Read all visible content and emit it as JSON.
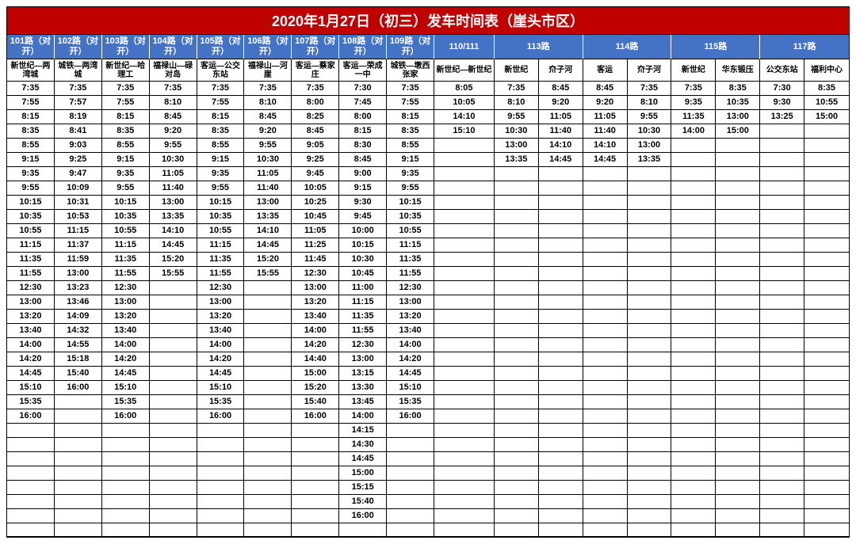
{
  "title": "2020年1月27日（初三）发车时间表（崖头市区）",
  "colors": {
    "title_bg": "#c00000",
    "header_bg": "#4472c4",
    "text_white": "#ffffff",
    "border": "#000000"
  },
  "layout": {
    "col_widths_single": [
      60,
      60,
      60,
      60,
      60,
      60,
      60,
      60,
      60,
      76
    ],
    "col_widths_pair": [
      56,
      56,
      56,
      56,
      56,
      56,
      56,
      56
    ]
  },
  "route_headers": [
    {
      "label": "101路（对开）",
      "span": 1
    },
    {
      "label": "102路（对开）",
      "span": 1
    },
    {
      "label": "103路（对开）",
      "span": 1
    },
    {
      "label": "104路（对开）",
      "span": 1
    },
    {
      "label": "105路（对开）",
      "span": 1
    },
    {
      "label": "106路（对开）",
      "span": 1
    },
    {
      "label": "107路（对开）",
      "span": 1
    },
    {
      "label": "108路（对开）",
      "span": 1
    },
    {
      "label": "109路（对开）",
      "span": 1
    },
    {
      "label": "110/111",
      "span": 1
    },
    {
      "label": "113路",
      "span": 2
    },
    {
      "label": "114路",
      "span": 2
    },
    {
      "label": "115路",
      "span": 2
    },
    {
      "label": "117路",
      "span": 2
    }
  ],
  "sub_headers": [
    "新世纪—两湾城",
    "城铁—两湾城",
    "新世纪—哈理工",
    "福禄山—碌对岛",
    "客运—公交东站",
    "福禄山—河崖",
    "客运—蔡家庄",
    "客运—荣成一中",
    "城铁—墩西张家",
    "新世纪—新世纪",
    "新世纪",
    "夼子河",
    "客运",
    "夼子河",
    "新世纪",
    "华东锻压",
    "公交东站",
    "福利中心"
  ],
  "rows": [
    [
      "7:35",
      "7:35",
      "7:35",
      "7:35",
      "7:35",
      "7:35",
      "7:35",
      "7:30",
      "7:35",
      "8:05",
      "7:35",
      "8:45",
      "8:45",
      "7:35",
      "7:35",
      "8:35",
      "7:30",
      "8:35"
    ],
    [
      "7:55",
      "7:57",
      "7:55",
      "8:10",
      "7:55",
      "8:10",
      "8:00",
      "7:45",
      "7:55",
      "10:05",
      "8:10",
      "9:20",
      "9:20",
      "8:10",
      "9:35",
      "10:35",
      "9:30",
      "10:55"
    ],
    [
      "8:15",
      "8:19",
      "8:15",
      "8:45",
      "8:15",
      "8:45",
      "8:25",
      "8:00",
      "8:15",
      "14:10",
      "9:55",
      "11:05",
      "11:05",
      "9:55",
      "11:35",
      "13:00",
      "13:25",
      "15:00"
    ],
    [
      "8:35",
      "8:41",
      "8:35",
      "9:20",
      "8:35",
      "9:20",
      "8:45",
      "8:15",
      "8:35",
      "15:10",
      "10:30",
      "11:40",
      "11:40",
      "10:30",
      "14:00",
      "15:00",
      "",
      ""
    ],
    [
      "8:55",
      "9:03",
      "8:55",
      "9:55",
      "8:55",
      "9:55",
      "9:05",
      "8:30",
      "8:55",
      "",
      "13:00",
      "14:10",
      "14:10",
      "13:00",
      "",
      "",
      "",
      ""
    ],
    [
      "9:15",
      "9:25",
      "9:15",
      "10:30",
      "9:15",
      "10:30",
      "9:25",
      "8:45",
      "9:15",
      "",
      "13:35",
      "14:45",
      "14:45",
      "13:35",
      "",
      "",
      "",
      ""
    ],
    [
      "9:35",
      "9:47",
      "9:35",
      "11:05",
      "9:35",
      "11:05",
      "9:45",
      "9:00",
      "9:35",
      "",
      "",
      "",
      "",
      "",
      "",
      "",
      "",
      ""
    ],
    [
      "9:55",
      "10:09",
      "9:55",
      "11:40",
      "9:55",
      "11:40",
      "10:05",
      "9:15",
      "9:55",
      "",
      "",
      "",
      "",
      "",
      "",
      "",
      "",
      ""
    ],
    [
      "10:15",
      "10:31",
      "10:15",
      "13:00",
      "10:15",
      "13:00",
      "10:25",
      "9:30",
      "10:15",
      "",
      "",
      "",
      "",
      "",
      "",
      "",
      "",
      ""
    ],
    [
      "10:35",
      "10:53",
      "10:35",
      "13:35",
      "10:35",
      "13:35",
      "10:45",
      "9:45",
      "10:35",
      "",
      "",
      "",
      "",
      "",
      "",
      "",
      "",
      ""
    ],
    [
      "10:55",
      "11:15",
      "10:55",
      "14:10",
      "10:55",
      "14:10",
      "11:05",
      "10:00",
      "10:55",
      "",
      "",
      "",
      "",
      "",
      "",
      "",
      "",
      ""
    ],
    [
      "11:15",
      "11:37",
      "11:15",
      "14:45",
      "11:15",
      "14:45",
      "11:25",
      "10:15",
      "11:15",
      "",
      "",
      "",
      "",
      "",
      "",
      "",
      "",
      ""
    ],
    [
      "11:35",
      "11:59",
      "11:35",
      "15:20",
      "11:35",
      "15:20",
      "11:45",
      "10:30",
      "11:35",
      "",
      "",
      "",
      "",
      "",
      "",
      "",
      "",
      ""
    ],
    [
      "11:55",
      "13:00",
      "11:55",
      "15:55",
      "11:55",
      "15:55",
      "12:30",
      "10:45",
      "11:55",
      "",
      "",
      "",
      "",
      "",
      "",
      "",
      "",
      ""
    ],
    [
      "12:30",
      "13:23",
      "12:30",
      "",
      "12:30",
      "",
      "13:00",
      "11:00",
      "12:30",
      "",
      "",
      "",
      "",
      "",
      "",
      "",
      "",
      ""
    ],
    [
      "13:00",
      "13:46",
      "13:00",
      "",
      "13:00",
      "",
      "13:20",
      "11:15",
      "13:00",
      "",
      "",
      "",
      "",
      "",
      "",
      "",
      "",
      ""
    ],
    [
      "13:20",
      "14:09",
      "13:20",
      "",
      "13:20",
      "",
      "13:40",
      "11:35",
      "13:20",
      "",
      "",
      "",
      "",
      "",
      "",
      "",
      "",
      ""
    ],
    [
      "13:40",
      "14:32",
      "13:40",
      "",
      "13:40",
      "",
      "14:00",
      "11:55",
      "13:40",
      "",
      "",
      "",
      "",
      "",
      "",
      "",
      "",
      ""
    ],
    [
      "14:00",
      "14:55",
      "14:00",
      "",
      "14:00",
      "",
      "14:20",
      "12:30",
      "14:00",
      "",
      "",
      "",
      "",
      "",
      "",
      "",
      "",
      ""
    ],
    [
      "14:20",
      "15:18",
      "14:20",
      "",
      "14:20",
      "",
      "14:40",
      "13:00",
      "14:20",
      "",
      "",
      "",
      "",
      "",
      "",
      "",
      "",
      ""
    ],
    [
      "14:45",
      "15:40",
      "14:45",
      "",
      "14:45",
      "",
      "15:00",
      "13:15",
      "14:45",
      "",
      "",
      "",
      "",
      "",
      "",
      "",
      "",
      ""
    ],
    [
      "15:10",
      "16:00",
      "15:10",
      "",
      "15:10",
      "",
      "15:20",
      "13:30",
      "15:10",
      "",
      "",
      "",
      "",
      "",
      "",
      "",
      "",
      ""
    ],
    [
      "15:35",
      "",
      "15:35",
      "",
      "15:35",
      "",
      "15:40",
      "13:45",
      "15:35",
      "",
      "",
      "",
      "",
      "",
      "",
      "",
      "",
      ""
    ],
    [
      "16:00",
      "",
      "16:00",
      "",
      "16:00",
      "",
      "16:00",
      "14:00",
      "16:00",
      "",
      "",
      "",
      "",
      "",
      "",
      "",
      "",
      ""
    ],
    [
      "",
      "",
      "",
      "",
      "",
      "",
      "",
      "14:15",
      "",
      "",
      "",
      "",
      "",
      "",
      "",
      "",
      "",
      ""
    ],
    [
      "",
      "",
      "",
      "",
      "",
      "",
      "",
      "14:30",
      "",
      "",
      "",
      "",
      "",
      "",
      "",
      "",
      "",
      ""
    ],
    [
      "",
      "",
      "",
      "",
      "",
      "",
      "",
      "14:45",
      "",
      "",
      "",
      "",
      "",
      "",
      "",
      "",
      "",
      ""
    ],
    [
      "",
      "",
      "",
      "",
      "",
      "",
      "",
      "15:00",
      "",
      "",
      "",
      "",
      "",
      "",
      "",
      "",
      "",
      ""
    ],
    [
      "",
      "",
      "",
      "",
      "",
      "",
      "",
      "15:15",
      "",
      "",
      "",
      "",
      "",
      "",
      "",
      "",
      "",
      ""
    ],
    [
      "",
      "",
      "",
      "",
      "",
      "",
      "",
      "15:40",
      "",
      "",
      "",
      "",
      "",
      "",
      "",
      "",
      "",
      ""
    ],
    [
      "",
      "",
      "",
      "",
      "",
      "",
      "",
      "16:00",
      "",
      "",
      "",
      "",
      "",
      "",
      "",
      "",
      "",
      ""
    ],
    [
      "",
      "",
      "",
      "",
      "",
      "",
      "",
      "",
      "",
      "",
      "",
      "",
      "",
      "",
      "",
      "",
      "",
      ""
    ]
  ]
}
